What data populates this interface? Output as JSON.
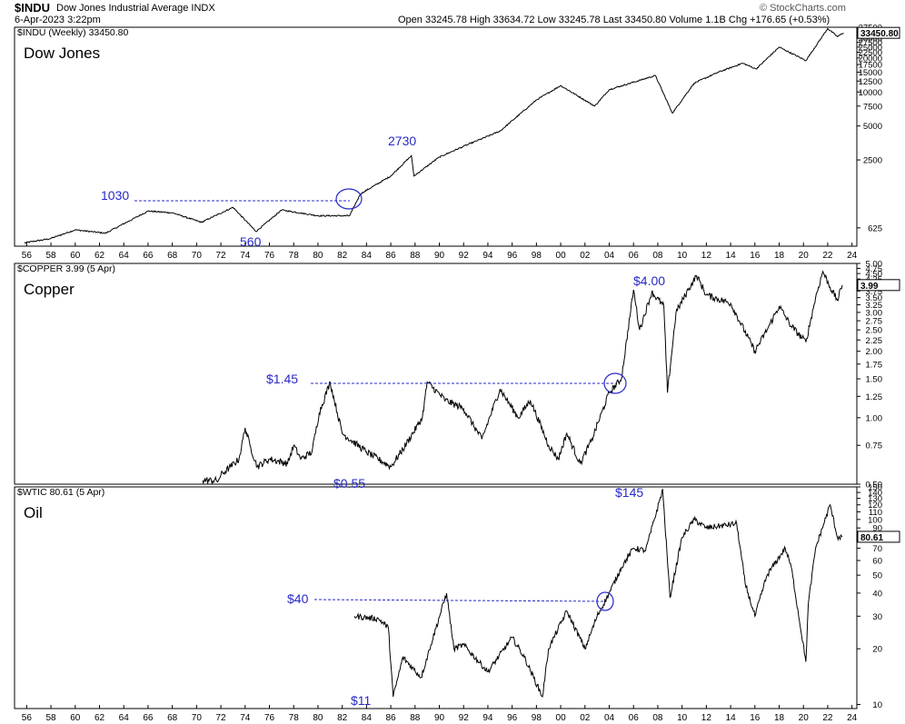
{
  "header": {
    "symbol": "$INDU",
    "name": "Dow Jones Industrial Average INDX",
    "date": "6-Apr-2023 3:22pm",
    "quote": "Open 33245.78  High 33634.72  Low 33245.78  Last 33450.80  Volume 1.1B  Chg +176.65 (+0.53%)",
    "credit": "© StockCharts.com"
  },
  "chart_data": [
    {
      "type": "line",
      "title": "Dow Jones",
      "legend": "$INDU (Weekly) 33450.80",
      "last_value": "33450.80",
      "scale": "log",
      "ylim": [
        430,
        37500
      ],
      "y_ticks": [
        625,
        2500,
        5000,
        7500,
        10000,
        12500,
        15000,
        17500,
        20000,
        22500,
        25000,
        27500,
        30000,
        32500,
        35000,
        37500
      ],
      "x_ticks": [
        "56",
        "58",
        "60",
        "62",
        "64",
        "66",
        "68",
        "70",
        "72",
        "74",
        "76",
        "78",
        "80",
        "82",
        "84",
        "86",
        "88",
        "90",
        "92",
        "94",
        "96",
        "98",
        "00",
        "02",
        "04",
        "06",
        "08",
        "10",
        "12",
        "14",
        "16",
        "18",
        "20",
        "22",
        "24"
      ],
      "x": [
        1955.8,
        1957.9,
        1960,
        1962.5,
        1966,
        1968,
        1970.4,
        1973,
        1974.9,
        1977,
        1980,
        1982.6,
        1983.5,
        1986,
        1987.7,
        1987.9,
        1990,
        1992,
        1995,
        1998,
        2000,
        2002.8,
        2004,
        2007.8,
        2009.2,
        2011,
        2013,
        2015,
        2016.1,
        2018,
        2020.2,
        2022,
        2022.8,
        2023.3
      ],
      "values": [
        460,
        500,
        600,
        560,
        880,
        850,
        700,
        950,
        580,
        900,
        800,
        800,
        1250,
        1800,
        2730,
        1800,
        2650,
        3300,
        4500,
        8500,
        11400,
        7500,
        10500,
        14000,
        6500,
        12000,
        15000,
        18000,
        16000,
        25000,
        19000,
        36500,
        31000,
        33450
      ],
      "annotations": {
        "level_1030": "1030",
        "low_560": "560",
        "high_2730": "2730"
      }
    },
    {
      "type": "line",
      "title": "Copper",
      "legend": "$COPPER 3.99 (5 Apr)",
      "last_value": "3.99",
      "scale": "log",
      "ylim": [
        0.5,
        5.0
      ],
      "y_ticks": [
        0.5,
        0.75,
        1.0,
        1.25,
        1.5,
        1.75,
        2.0,
        2.25,
        2.5,
        2.75,
        3.0,
        3.25,
        3.5,
        3.75,
        4.0,
        4.25,
        4.5,
        4.75,
        5.0
      ],
      "y_tick_labels": [
        "0.50",
        "0.75",
        "1.00",
        "1.25",
        "1.50",
        "1.75",
        "2.00",
        "2.25",
        "2.50",
        "2.75",
        "3.00",
        "3.25",
        "3.50",
        "3.75",
        "4.00",
        "4.25",
        "4.50",
        "4.75",
        "5.00"
      ],
      "x": [
        1970.5,
        1971.8,
        1972,
        1972.8,
        1973.5,
        1974,
        1974.4,
        1975,
        1976,
        1977.5,
        1978,
        1978.6,
        1979.5,
        1980.1,
        1981,
        1982,
        1984,
        1986,
        1987,
        1988.6,
        1989,
        1990.5,
        1992,
        1993.5,
        1995,
        1996.5,
        1997.5,
        1999,
        1999.8,
        2000.5,
        2001.6,
        2002.5,
        2004,
        2005,
        2006,
        2006.5,
        2007.5,
        2008.5,
        2008.8,
        2009.5,
        2010.5,
        2011.2,
        2012,
        2014,
        2016,
        2017,
        2018,
        2019,
        2020.2,
        2021,
        2021.6,
        2022.2,
        2022.8,
        2023.2
      ],
      "values": [
        0.52,
        0.52,
        0.55,
        0.6,
        0.65,
        0.9,
        0.75,
        0.6,
        0.65,
        0.62,
        0.75,
        0.65,
        0.7,
        1.05,
        1.45,
        0.85,
        0.7,
        0.6,
        0.72,
        1.0,
        1.45,
        1.2,
        1.1,
        0.8,
        1.35,
        1.0,
        1.2,
        0.75,
        0.65,
        0.85,
        0.62,
        0.78,
        1.3,
        1.5,
        3.8,
        2.5,
        3.7,
        3.2,
        1.3,
        3.0,
        3.8,
        4.4,
        3.6,
        3.3,
        2.0,
        2.5,
        3.2,
        2.6,
        2.2,
        3.5,
        4.6,
        3.9,
        3.4,
        3.99
      ],
      "annotations": {
        "level_145": "$1.45",
        "low_055": "$0.55",
        "high_400": "$4.00"
      }
    },
    {
      "type": "line",
      "title": "Oil",
      "legend": "$WTIC 80.61 (5 Apr)",
      "last_value": "80.61",
      "scale": "log",
      "ylim": [
        9.5,
        150
      ],
      "y_ticks": [
        10,
        20,
        30,
        40,
        50,
        60,
        70,
        80,
        90,
        100,
        110,
        120,
        130,
        140,
        150
      ],
      "x": [
        1983,
        1985,
        1985.8,
        1986.2,
        1987,
        1988.5,
        1989.3,
        1990.6,
        1991.2,
        1992,
        1994,
        1996,
        1997,
        1998.5,
        1999,
        2000.5,
        2002,
        2003,
        2004,
        2005,
        2006,
        2007,
        2008.4,
        2009,
        2010,
        2011,
        2012,
        2014.5,
        2015.2,
        2016,
        2017,
        2018.5,
        2019,
        2020.2,
        2020.4,
        2021,
        2022.2,
        2022.8,
        2023.2
      ],
      "values": [
        30,
        29,
        26,
        11,
        18,
        14,
        21,
        40,
        20,
        21,
        15,
        23,
        18,
        11,
        20,
        32,
        20,
        30,
        40,
        55,
        70,
        68,
        145,
        38,
        80,
        100,
        90,
        95,
        45,
        30,
        50,
        70,
        55,
        17,
        35,
        70,
        120,
        80,
        80.61
      ],
      "annotations": {
        "level_40": "$40",
        "low_11": "$11",
        "high_145": "$145"
      }
    }
  ]
}
